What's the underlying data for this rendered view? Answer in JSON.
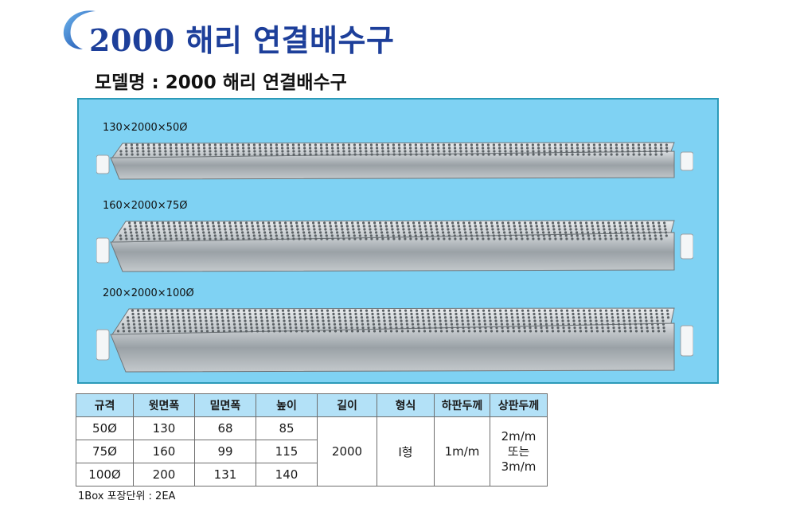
{
  "title": "2000 해리 연결배수구",
  "model_line": "모델명 : 2000 해리 연결배수구",
  "colors": {
    "title": "#1d3f9a",
    "panel_bg": "#7fd2f3",
    "table_header": "#b3e1f7"
  },
  "products": [
    {
      "label": "130×2000×50Ø"
    },
    {
      "label": "160×2000×75Ø"
    },
    {
      "label": "200×2000×100Ø"
    }
  ],
  "table": {
    "headers": [
      "규격",
      "윗면폭",
      "밑면폭",
      "높이",
      "길이",
      "형식",
      "하판두께",
      "상판두께"
    ],
    "rows": [
      [
        "50Ø",
        "130",
        "68",
        "85"
      ],
      [
        "75Ø",
        "160",
        "99",
        "115"
      ],
      [
        "100Ø",
        "200",
        "131",
        "140"
      ]
    ],
    "length": "2000",
    "type": "I형",
    "bottom_thickness": "1m/m",
    "top_thickness": [
      "2m/m",
      "또는",
      "3m/m"
    ]
  },
  "packaging_note": "1Box 포장단위 : 2EA"
}
